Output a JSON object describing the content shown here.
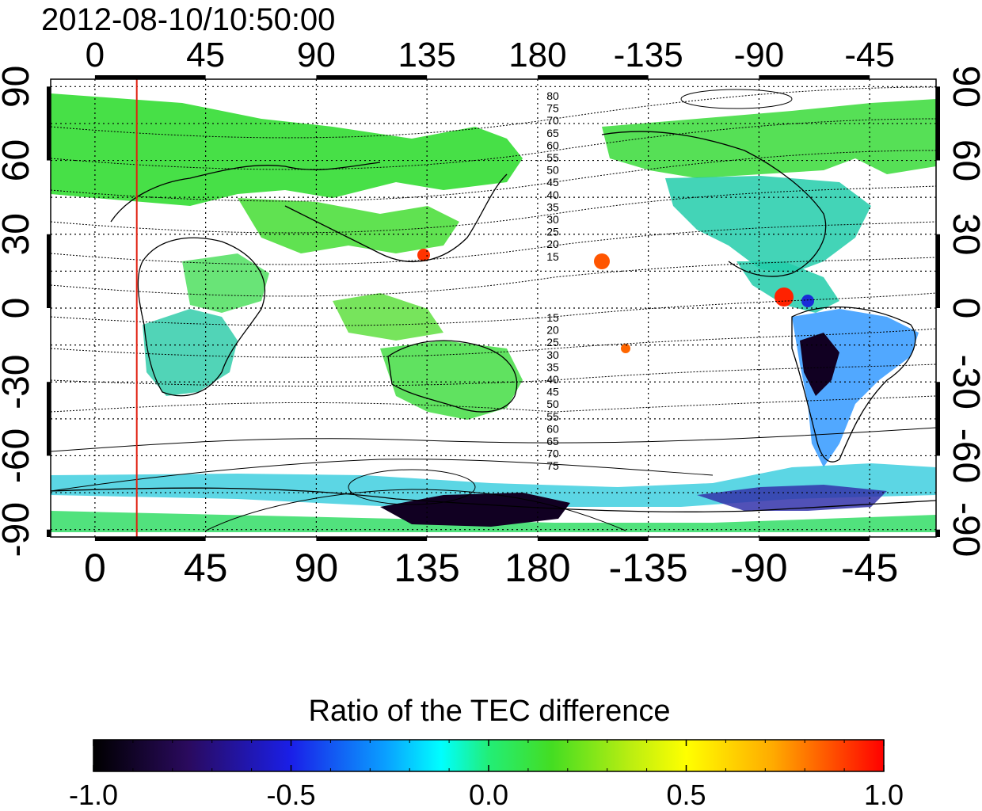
{
  "map": {
    "timestamp": "2012-08-10/10:50:00",
    "lon_ticks_top": [
      "0",
      "45",
      "90",
      "135",
      "180",
      "-135",
      "-90",
      "-45"
    ],
    "lon_ticks_bottom": [
      "0",
      "45",
      "90",
      "135",
      "180",
      "-135",
      "-90",
      "-45"
    ],
    "lat_ticks_left": [
      "90",
      "60",
      "30",
      "0",
      "-30",
      "-60",
      "-90"
    ],
    "lat_ticks_right": [
      "90",
      "60",
      "30",
      "0",
      "-30",
      "-60",
      "-90"
    ],
    "lat_ticks_values": [
      90,
      60,
      30,
      0,
      -30,
      -60,
      -90
    ],
    "lon_tick_values": [
      0,
      45,
      90,
      135,
      180,
      225,
      270,
      315
    ],
    "lon_range": [
      -18,
      342
    ],
    "lat_range": [
      -93,
      93
    ],
    "red_line_longitude": 17,
    "contour_labels_north": [
      "80",
      "75",
      "70",
      "65",
      "60",
      "55",
      "50",
      "45",
      "40",
      "35",
      "30",
      "25",
      "20",
      "15"
    ],
    "contour_labels_south": [
      "15",
      "20",
      "25",
      "30",
      "35",
      "40",
      "45",
      "50",
      "55",
      "60",
      "65",
      "70",
      "75"
    ]
  },
  "colorbar": {
    "title": "Ratio of the TEC difference",
    "tick_labels": [
      "-1.0",
      "-0.5",
      "0.0",
      "0.5",
      "1.0"
    ],
    "tick_values": [
      -1.0,
      -0.5,
      0.0,
      0.5,
      1.0
    ],
    "range": [
      -1.0,
      1.0
    ],
    "colors": [
      "#000000",
      "#3a0a6e",
      "#1a2bd8",
      "#0a9bff",
      "#00ffff",
      "#22ee77",
      "#33dd22",
      "#bbee11",
      "#ffff00",
      "#ffaa00",
      "#ff2200",
      "#ff0000"
    ]
  },
  "colors": {
    "red_line": "#e02010",
    "land_outline": "#000000",
    "ocean_background": "#ffffff"
  }
}
